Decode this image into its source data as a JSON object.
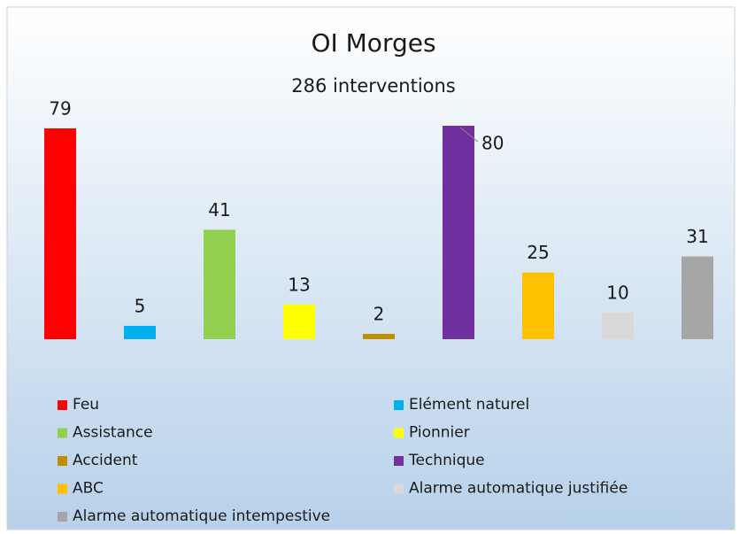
{
  "chart_data": {
    "type": "bar",
    "title": "OI Morges",
    "subtitle": "286 interventions",
    "categories": [
      "Feu",
      "Elément naturel",
      "Assistance",
      "Pionnier",
      "Accident",
      "Technique",
      "ABC",
      "Alarme automatique justifiée",
      "Alarme automatique intempestive"
    ],
    "values": [
      79,
      5,
      41,
      13,
      2,
      80,
      25,
      10,
      31
    ],
    "colors": [
      "#ff0000",
      "#00b0f0",
      "#92d050",
      "#ffff00",
      "#bf8f00",
      "#7030a0",
      "#ffc000",
      "#d9d9d9",
      "#a6a6a6"
    ],
    "legend": "bottom"
  }
}
